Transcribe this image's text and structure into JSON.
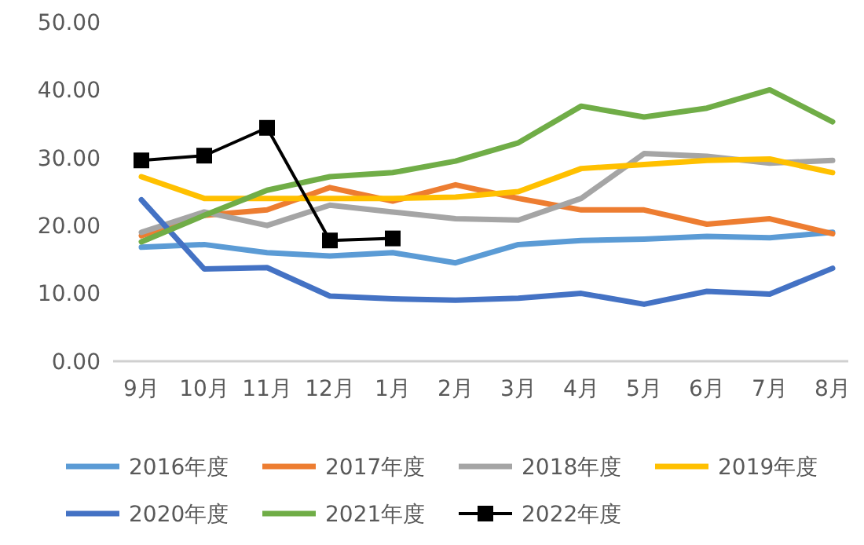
{
  "chart_data": {
    "type": "line",
    "categories": [
      "9月",
      "10月",
      "11月",
      "12月",
      "1月",
      "2月",
      "3月",
      "4月",
      "5月",
      "6月",
      "7月",
      "8月"
    ],
    "ylim": [
      0,
      50
    ],
    "yticks": [
      {
        "value": 0,
        "label": "0.00"
      },
      {
        "value": 10,
        "label": "10.00"
      },
      {
        "value": 20,
        "label": "20.00"
      },
      {
        "value": 30,
        "label": "30.00"
      },
      {
        "value": 40,
        "label": "40.00"
      },
      {
        "value": 50,
        "label": "50.00"
      }
    ],
    "grid": false,
    "legend": "bottom",
    "series": [
      {
        "name": "2016年度",
        "color": "#5b9bd5",
        "values": [
          16.8,
          17.2,
          16,
          15.5,
          16,
          14.5,
          17.2,
          17.8,
          18,
          18.4,
          18.2,
          19
        ]
      },
      {
        "name": "2017年度",
        "color": "#ed7d31",
        "values": [
          18.5,
          21.5,
          22.3,
          25.6,
          23.6,
          26,
          24,
          22.3,
          22.3,
          20.2,
          21,
          18.8
        ]
      },
      {
        "name": "2018年度",
        "color": "#a5a5a5",
        "values": [
          19,
          22,
          20,
          23,
          22,
          21,
          20.8,
          24,
          30.6,
          30.2,
          29.2,
          29.6
        ]
      },
      {
        "name": "2019年度",
        "color": "#ffc000",
        "values": [
          27.2,
          24,
          24,
          24,
          24,
          24.2,
          25,
          28.4,
          29,
          29.6,
          29.8,
          27.8
        ]
      },
      {
        "name": "2020年度",
        "color": "#4472c4",
        "values": [
          23.8,
          13.6,
          13.8,
          9.6,
          9.2,
          9,
          9.3,
          10,
          8.4,
          10.3,
          9.9,
          13.7
        ]
      },
      {
        "name": "2021年度",
        "color": "#70ad47",
        "values": [
          17.6,
          21.5,
          25.2,
          27.2,
          27.8,
          29.5,
          32.2,
          37.6,
          36,
          37.3,
          40,
          35.3
        ]
      },
      {
        "name": "2022年度",
        "color": "#000000",
        "marker": "square",
        "values": [
          29.6,
          30.3,
          34.4,
          17.8,
          18.1,
          null,
          null,
          null,
          null,
          null,
          null,
          null
        ]
      }
    ]
  }
}
